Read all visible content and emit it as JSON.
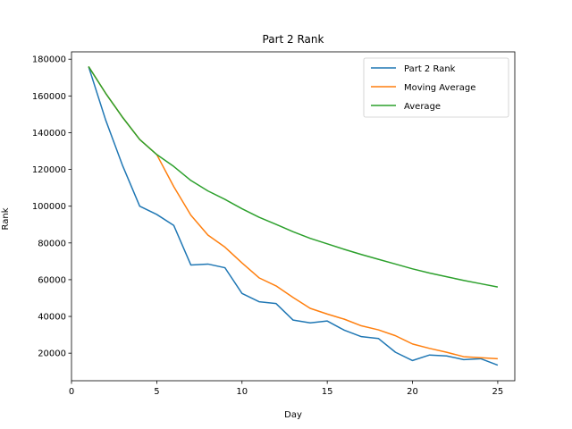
{
  "chart_data": {
    "type": "line",
    "title": "Part 2 Rank",
    "xlabel": "Day",
    "ylabel": "Rank",
    "xlim": [
      0,
      26
    ],
    "ylim": [
      5000,
      184000
    ],
    "xticks": [
      0,
      5,
      10,
      15,
      20,
      25
    ],
    "yticks": [
      20000,
      40000,
      60000,
      80000,
      100000,
      120000,
      140000,
      160000,
      180000
    ],
    "grid": false,
    "legend_position": "top-right",
    "x": [
      1,
      2,
      3,
      4,
      5,
      6,
      7,
      8,
      9,
      10,
      11,
      12,
      13,
      14,
      15,
      16,
      17,
      18,
      19,
      20,
      21,
      22,
      23,
      24,
      25
    ],
    "series": [
      {
        "name": "Part 2 Rank",
        "color": "#1f77b4",
        "values": [
          176000,
          147000,
          122000,
          100000,
          95500,
          89500,
          68000,
          68500,
          66500,
          52500,
          48000,
          47000,
          38000,
          36500,
          37500,
          32500,
          29000,
          28000,
          20500,
          16000,
          19000,
          18500,
          16500,
          17000,
          13500
        ]
      },
      {
        "name": "Moving Average",
        "color": "#ff7f0e",
        "values": [
          176000,
          161500,
          148300,
          136300,
          128100,
          110600,
          95100,
          84300,
          77700,
          69100,
          61000,
          56600,
          50300,
          44400,
          41300,
          38500,
          34900,
          32700,
          29500,
          25000,
          22600,
          20500,
          18100,
          17500,
          17000
        ]
      },
      {
        "name": "Average",
        "color": "#2ca02c",
        "values": [
          176000,
          161500,
          148300,
          136300,
          128100,
          121600,
          114000,
          108300,
          103700,
          98600,
          94000,
          90100,
          86100,
          82500,
          79500,
          76500,
          73700,
          71100,
          68500,
          65900,
          63600,
          61600,
          59600,
          57800,
          56000
        ]
      }
    ]
  }
}
